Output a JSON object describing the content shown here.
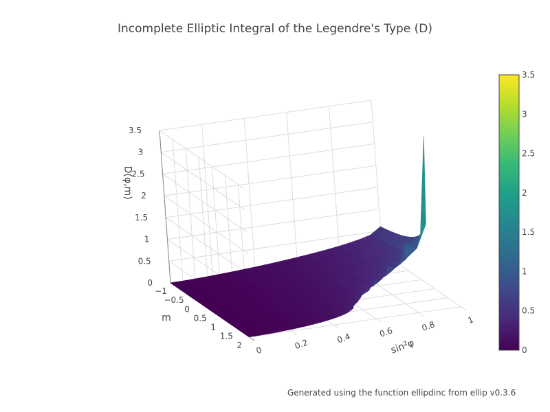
{
  "title": "Incomplete Elliptic Integral of the Legendre's Type (D)",
  "footnote": "Generated using the function ellipdinc from ellip v0.3.6",
  "chart_data": {
    "type": "surface",
    "title": "Incomplete Elliptic Integral of the Legendre's Type (D)",
    "x_axis": {
      "label": "sin²φ",
      "range": [
        0,
        1
      ],
      "ticks": [
        0,
        0.2,
        0.4,
        0.6,
        0.8,
        1
      ],
      "tick_labels": [
        "0",
        "0.2",
        "0.4",
        "0.6",
        "0.8",
        "1"
      ]
    },
    "y_axis": {
      "label": "m",
      "range": [
        -1,
        2.2
      ],
      "ticks": [
        -1,
        -0.5,
        0,
        0.5,
        1,
        1.5,
        2
      ],
      "tick_labels": [
        "−1",
        "−0.5",
        "0",
        "0.5",
        "1",
        "1.5",
        "2"
      ]
    },
    "z_axis": {
      "label": "D(φ,m)",
      "range": [
        0,
        3.5
      ],
      "ticks": [
        0,
        0.5,
        1,
        1.5,
        2,
        2.5,
        3,
        3.5
      ],
      "tick_labels": [
        "0",
        "0.5",
        "1",
        "1.5",
        "2",
        "2.5",
        "3",
        "3.5"
      ]
    },
    "colorscale": "viridis",
    "colorbar": {
      "range": [
        0,
        3.5
      ],
      "ticks": [
        0,
        0.5,
        1,
        1.5,
        2,
        2.5,
        3,
        3.5
      ],
      "tick_labels": [
        "0",
        "0.5",
        "1",
        "1.5",
        "2",
        "2.5",
        "3",
        "3.5"
      ]
    },
    "grid": true,
    "legend": "none"
  }
}
